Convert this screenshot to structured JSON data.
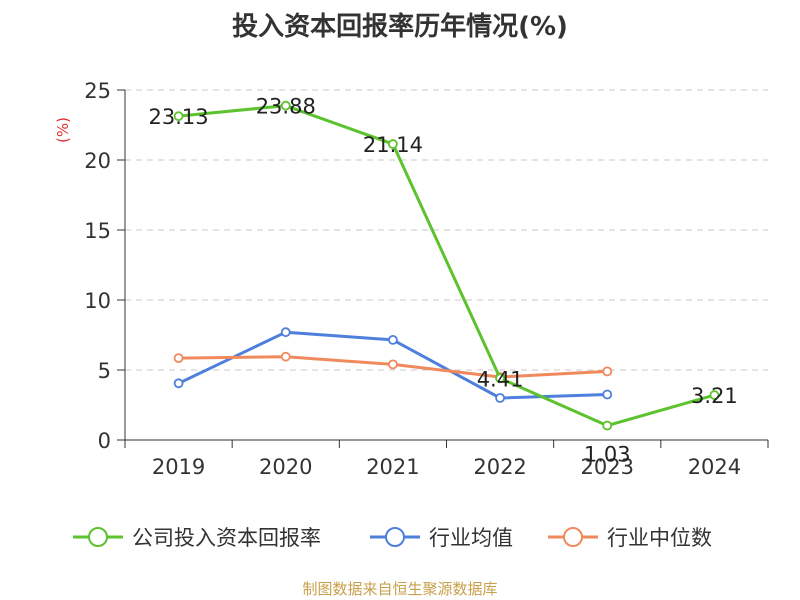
{
  "chart_data": {
    "type": "line",
    "title": "投入资本回报率历年情况(%)",
    "ylabel": "(%)",
    "xlabel": "",
    "categories": [
      "2019",
      "2020",
      "2021",
      "2022",
      "2023",
      "2024"
    ],
    "ylim": [
      0,
      25
    ],
    "yticks": [
      0,
      5,
      10,
      15,
      20,
      25
    ],
    "grid": true,
    "legend": "bottom",
    "series": [
      {
        "name": "公司投入资本回报率",
        "color": "#5cc22d",
        "values": [
          23.13,
          23.88,
          21.14,
          4.41,
          1.03,
          3.21
        ],
        "labels": [
          "23.13",
          "23.88",
          "21.14",
          "4.41",
          "1.03",
          "3.21"
        ]
      },
      {
        "name": "行业均值",
        "color": "#4e7fdc",
        "values": [
          4.05,
          7.7,
          7.15,
          3.0,
          3.25,
          null
        ]
      },
      {
        "name": "行业中位数",
        "color": "#f08a5d",
        "values": [
          5.85,
          5.95,
          5.4,
          4.5,
          4.9,
          null
        ]
      }
    ]
  },
  "source": "制图数据来自恒生聚源数据库"
}
